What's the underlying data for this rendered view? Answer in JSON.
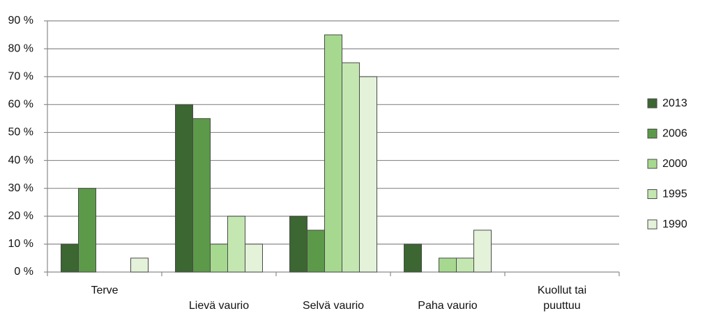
{
  "chart_data": {
    "type": "bar",
    "categories": [
      "Terve",
      "Lievä vaurio",
      "Selvä vaurio",
      "Paha vaurio",
      "Kuollut tai puuttuu"
    ],
    "series": [
      {
        "name": "2013",
        "color": "#3c6632",
        "values": [
          10,
          60,
          20,
          10,
          0
        ]
      },
      {
        "name": "2006",
        "color": "#5c9a49",
        "values": [
          30,
          55,
          15,
          0,
          0
        ]
      },
      {
        "name": "2000",
        "color": "#a6d98f",
        "values": [
          0,
          10,
          85,
          5,
          0
        ]
      },
      {
        "name": "1995",
        "color": "#c4e7b2",
        "values": [
          0,
          20,
          75,
          5,
          0
        ]
      },
      {
        "name": "1990",
        "color": "#e3f2d9",
        "values": [
          5,
          10,
          70,
          15,
          0
        ]
      }
    ],
    "ylim": [
      0,
      90
    ],
    "yticks": [
      {
        "value": 0,
        "label": "0 %"
      },
      {
        "value": 10,
        "label": "10 %"
      },
      {
        "value": 20,
        "label": "20 %"
      },
      {
        "value": 30,
        "label": "30 %"
      },
      {
        "value": 40,
        "label": "40 %"
      },
      {
        "value": 50,
        "label": "50 %"
      },
      {
        "value": 60,
        "label": "60 %"
      },
      {
        "value": 70,
        "label": "70 %"
      },
      {
        "value": 80,
        "label": "80 %"
      },
      {
        "value": 90,
        "label": "90 %"
      }
    ],
    "grid": true,
    "legend": "right"
  }
}
